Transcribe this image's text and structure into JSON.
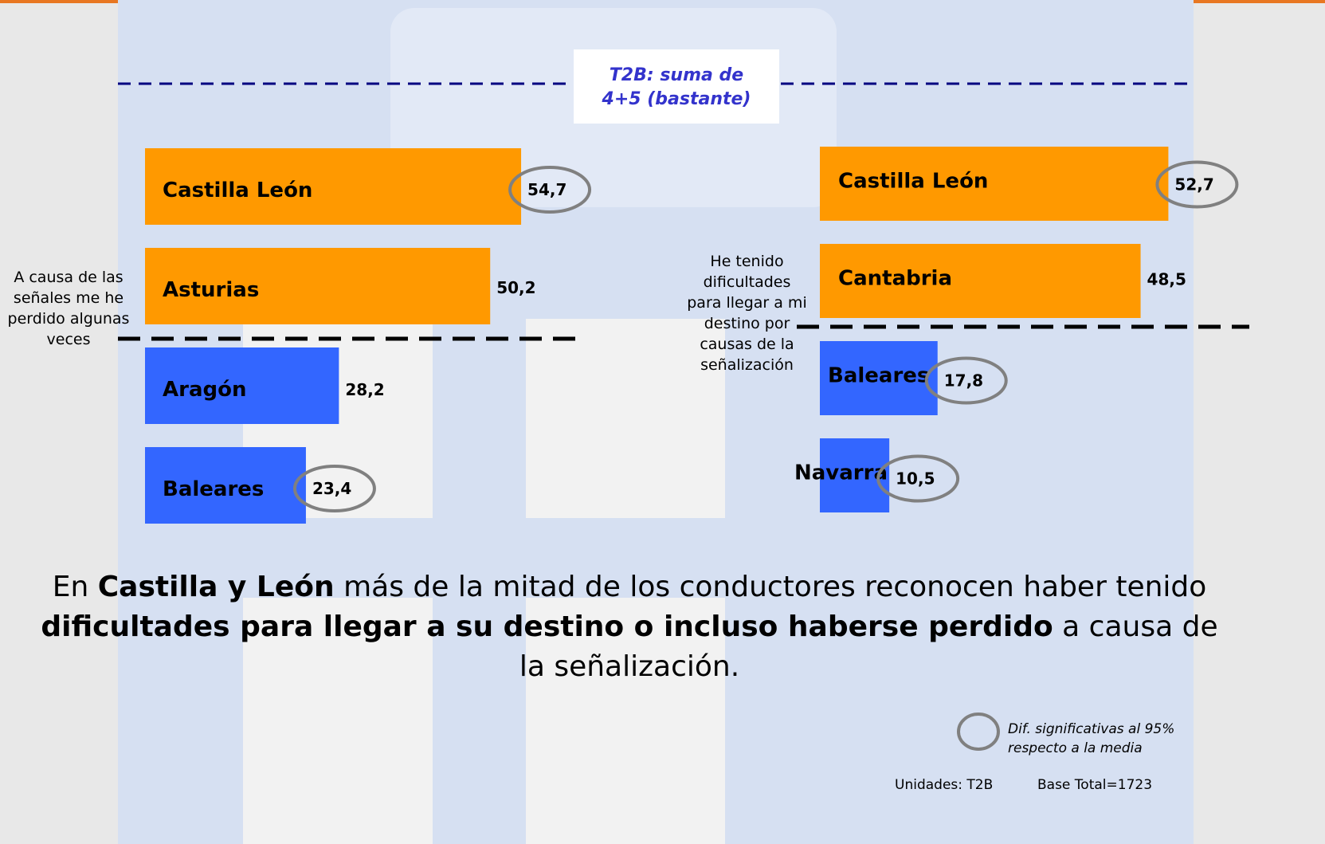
{
  "annotation": "T2B: suma de 4+5 (bastante)",
  "chart_data": [
    {
      "type": "bar",
      "orientation": "horizontal",
      "label": "A causa de las señales me he perdido algunas veces",
      "categories": [
        "Castilla León",
        "Asturias",
        "Aragón",
        "Baleares"
      ],
      "values": [
        54.7,
        50.2,
        28.2,
        23.4
      ],
      "value_labels": [
        "54,7",
        "50,2",
        "28,2",
        "23,4"
      ],
      "colors": [
        "#ff9900",
        "#ff9900",
        "#3366ff",
        "#3366ff"
      ],
      "significant": [
        true,
        false,
        false,
        true
      ]
    },
    {
      "type": "bar",
      "orientation": "horizontal",
      "label": "He tenido dificultades para llegar a mi destino por causas de la señalización",
      "categories": [
        "Castilla León",
        "Cantabria",
        "Baleares",
        "Navarra"
      ],
      "values": [
        52.7,
        48.5,
        17.8,
        10.5
      ],
      "value_labels": [
        "52,7",
        "48,5",
        "17,8",
        "10,5"
      ],
      "colors": [
        "#ff9900",
        "#ff9900",
        "#3366ff",
        "#3366ff"
      ],
      "significant": [
        true,
        false,
        true,
        true
      ]
    }
  ],
  "summary": [
    {
      "text": "En ",
      "bold": false
    },
    {
      "text": "Castilla y León",
      "bold": true
    },
    {
      "text": " más de la mitad de los conductores reconocen haber tenido ",
      "bold": false
    },
    {
      "text": "dificultades para llegar a su destino o incluso haberse perdido",
      "bold": true
    },
    {
      "text": " a causa de la señalización.",
      "bold": false
    }
  ],
  "legend_note": "Dif. significativas al 95% respecto a la media",
  "units": "Unidades: T2B",
  "base": "Base Total=1723"
}
